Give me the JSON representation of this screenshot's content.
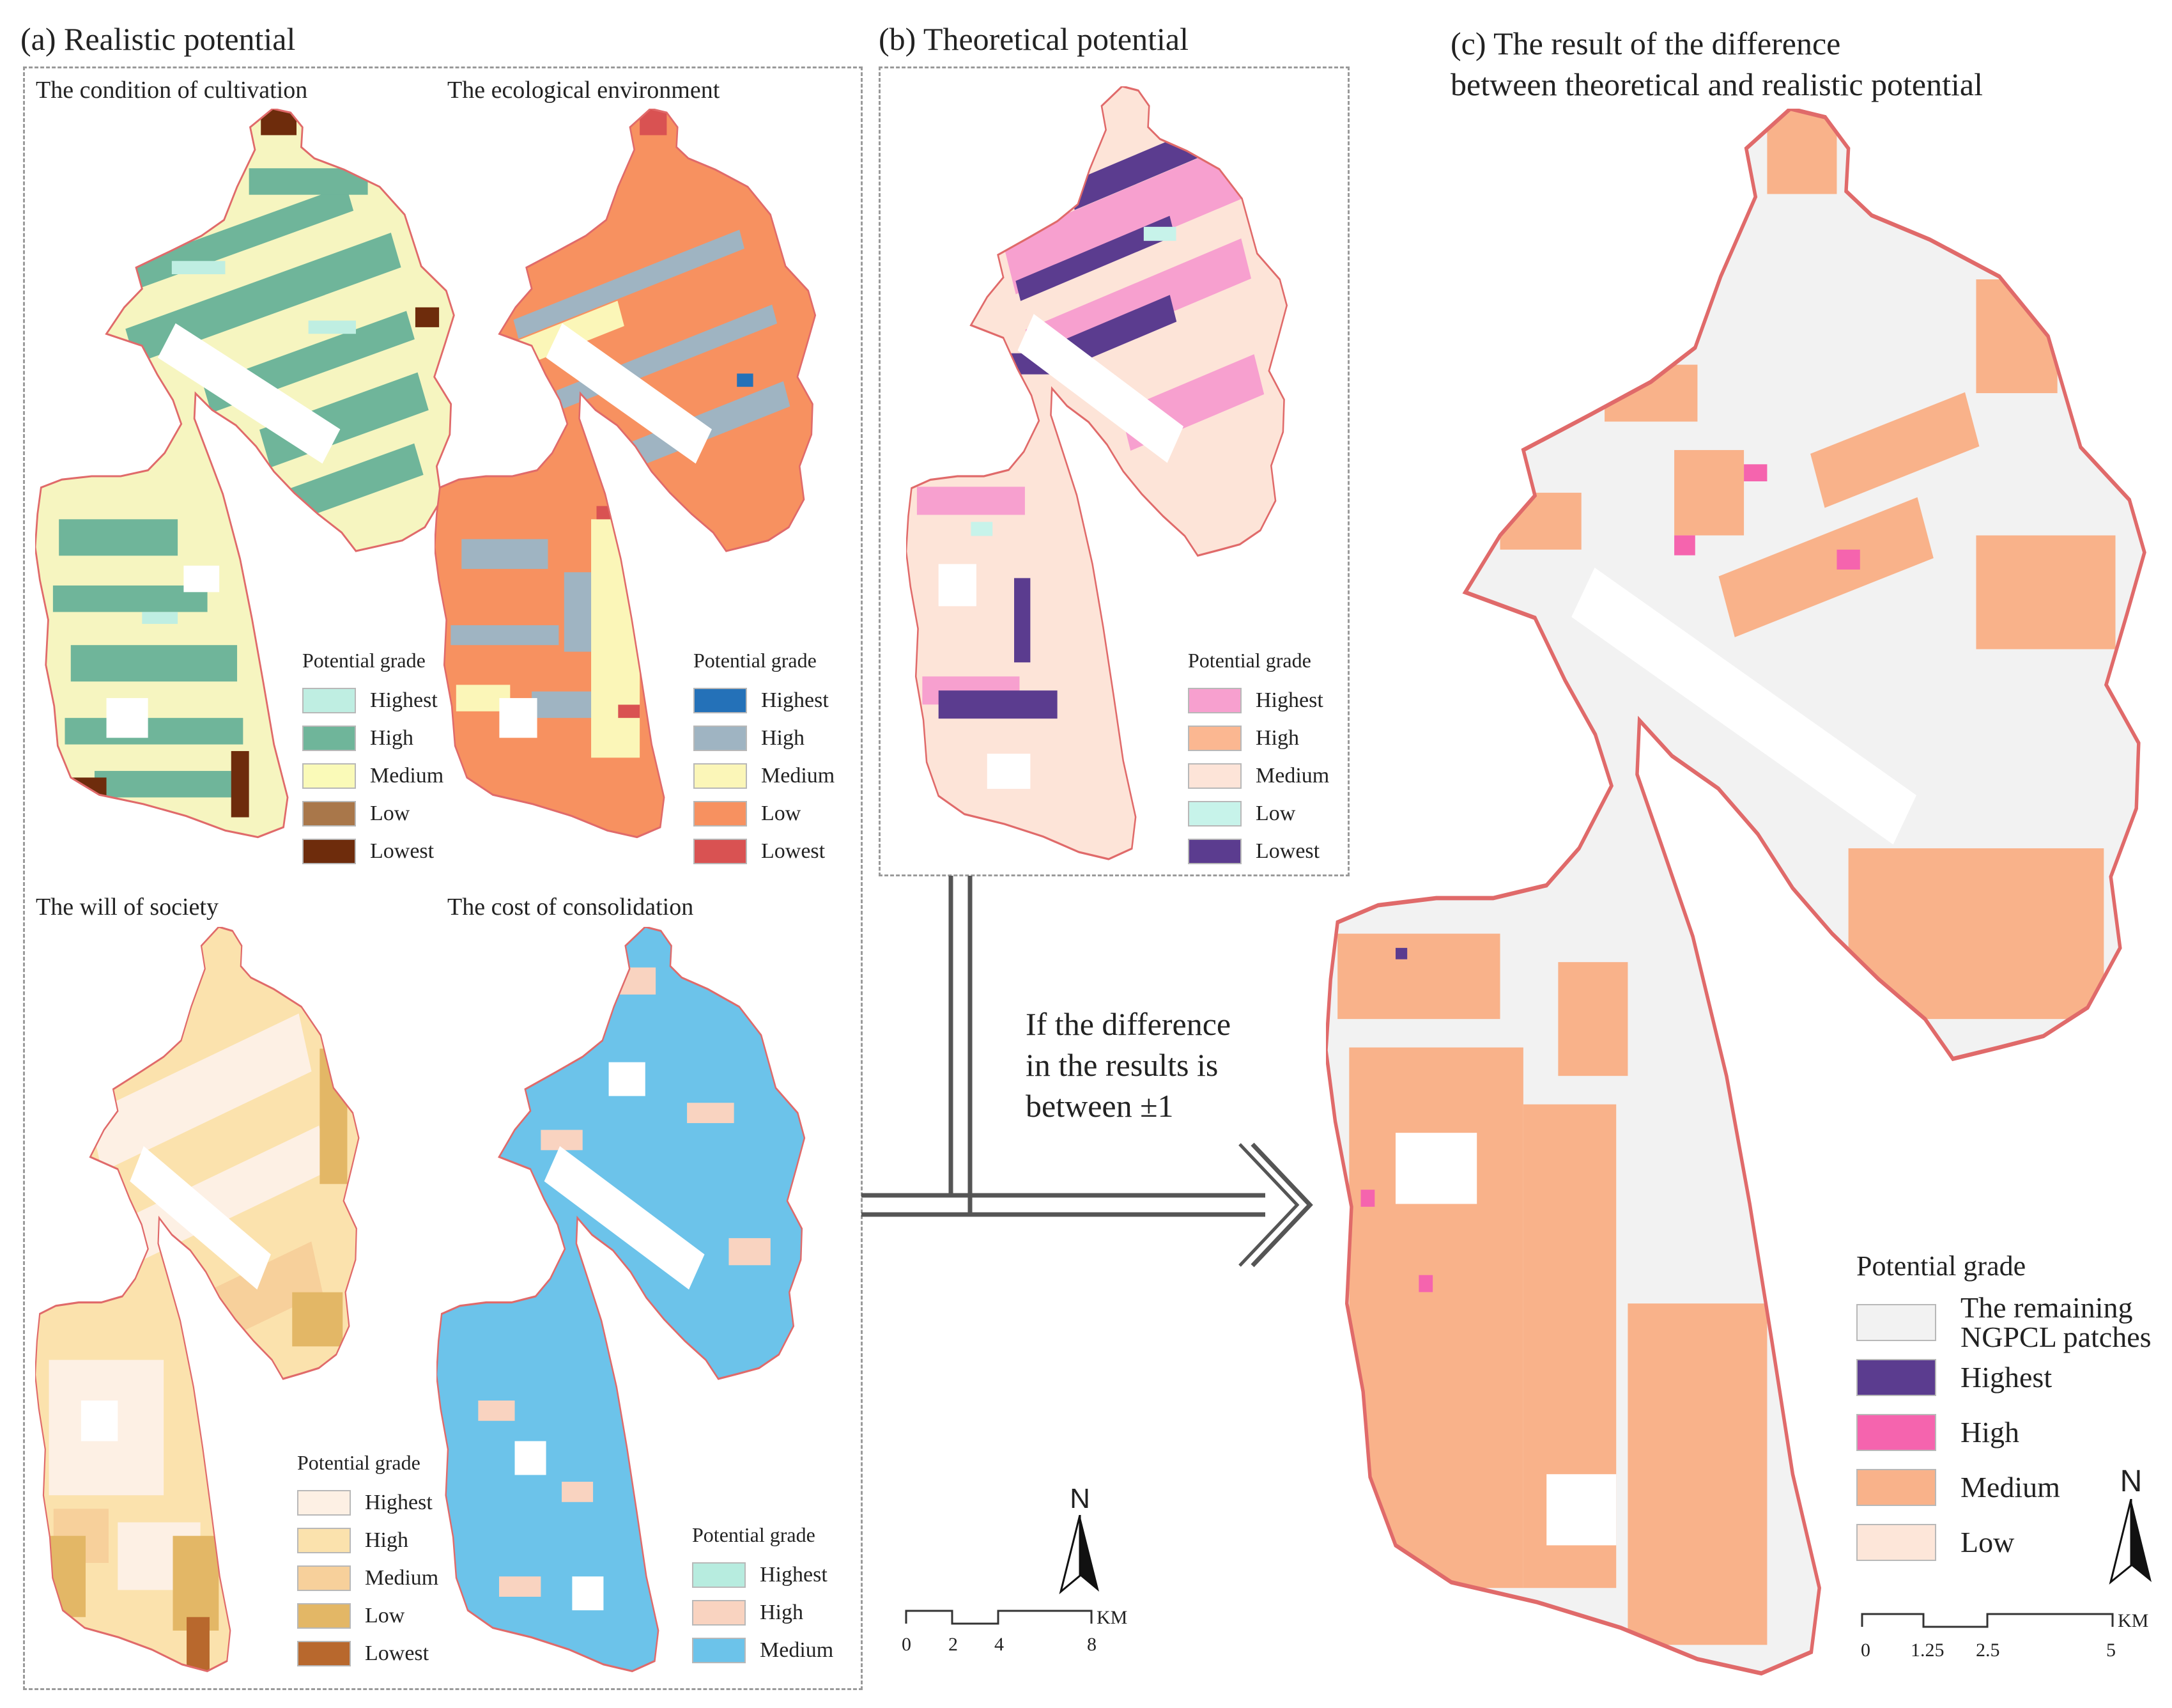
{
  "panels": {
    "a": {
      "title": "(a) Realistic potential",
      "maps": [
        {
          "title": "The condition of cultivation",
          "legend_title": "Potential grade",
          "legend": [
            {
              "label": "Highest",
              "color": "#bfeee2"
            },
            {
              "label": "High",
              "color": "#6fb59a"
            },
            {
              "label": "Medium",
              "color": "#fafab8"
            },
            {
              "label": "Low",
              "color": "#a9774a"
            },
            {
              "label": "Lowest",
              "color": "#6e2c0c"
            }
          ]
        },
        {
          "title": "The ecological environment",
          "legend_title": "Potential grade",
          "legend": [
            {
              "label": "Highest",
              "color": "#2471b8"
            },
            {
              "label": "High",
              "color": "#9fb4c2"
            },
            {
              "label": "Medium",
              "color": "#fbf6b8"
            },
            {
              "label": "Low",
              "color": "#f79160"
            },
            {
              "label": "Lowest",
              "color": "#d95252"
            }
          ]
        },
        {
          "title": "The will of society",
          "legend_title": "Potential grade",
          "legend": [
            {
              "label": "Highest",
              "color": "#fdf0e4"
            },
            {
              "label": "High",
              "color": "#fbe2ad"
            },
            {
              "label": "Medium",
              "color": "#f7d09b"
            },
            {
              "label": "Low",
              "color": "#e3b766"
            },
            {
              "label": "Lowest",
              "color": "#b8682d"
            }
          ]
        },
        {
          "title": "The cost of consolidation",
          "legend_title": "Potential grade",
          "legend": [
            {
              "label": "Highest",
              "color": "#b7ecdf"
            },
            {
              "label": "High",
              "color": "#f9d3c0"
            },
            {
              "label": "Medium",
              "color": "#6cc3ea"
            }
          ]
        }
      ]
    },
    "b": {
      "title": "(b) Theoretical potential",
      "legend_title": "Potential grade",
      "legend": [
        {
          "label": "Highest",
          "color": "#f7a0cf"
        },
        {
          "label": "High",
          "color": "#fbb791"
        },
        {
          "label": "Medium",
          "color": "#fde4d8"
        },
        {
          "label": "Low",
          "color": "#c7f3ea"
        },
        {
          "label": "Lowest",
          "color": "#5b3c8f"
        }
      ],
      "scale": {
        "labels": [
          "0",
          "2",
          "4",
          "8"
        ],
        "unit": "KM"
      },
      "north": "N"
    },
    "c": {
      "title_line1": "(c) The result of the difference",
      "title_line2": "between theoretical and realistic potential",
      "legend_title": "Potential grade",
      "legend": [
        {
          "label": "The remaining NGPCL patches",
          "color": "#f2f2f2"
        },
        {
          "label": "Highest",
          "color": "#5b3c8f"
        },
        {
          "label": "High",
          "color": "#f564ae"
        },
        {
          "label": "Medium",
          "color": "#f9b28a"
        },
        {
          "label": "Low",
          "color": "#fde6d9"
        }
      ],
      "scale": {
        "labels": [
          "0",
          "1.25",
          "2.5",
          "5"
        ],
        "unit": "KM"
      },
      "north": "N"
    }
  },
  "connector_note": [
    "If the difference",
    "in the results is",
    "between ±1"
  ]
}
